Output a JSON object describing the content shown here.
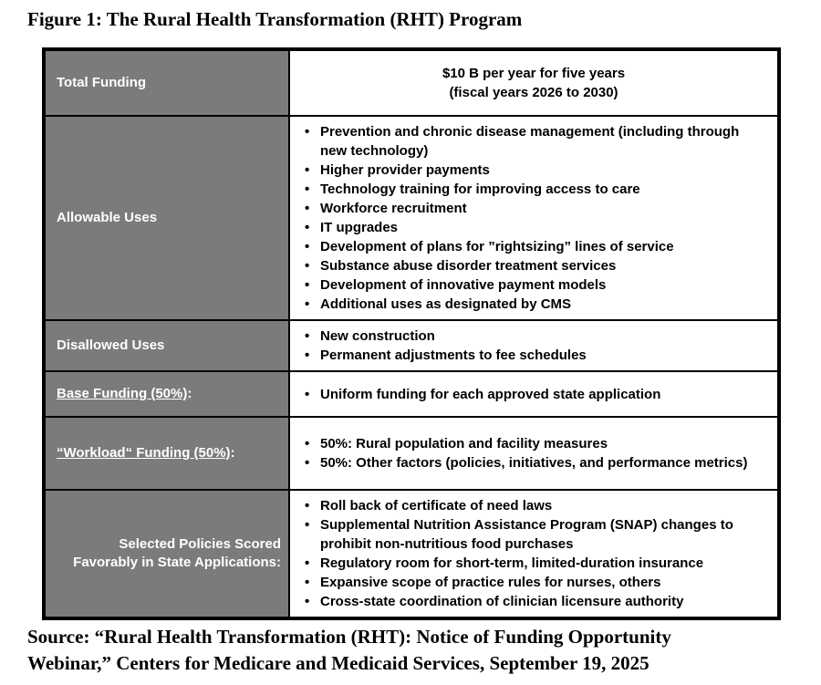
{
  "title": "Figure 1: The Rural Health Transformation (RHT) Program",
  "colors": {
    "label_bg": "#7b7b7b",
    "label_text": "#ffffff",
    "border": "#000000",
    "content_text": "#000000"
  },
  "table": {
    "rows": [
      {
        "label": "Total Funding",
        "label_underline": false,
        "label_align": "left",
        "content_type": "centered_lines",
        "content_lines": [
          "$10 B per year for five years",
          "(fiscal years 2026 to 2030)"
        ]
      },
      {
        "label": "Allowable Uses",
        "label_underline": false,
        "label_align": "left",
        "content_type": "bullets",
        "bullets": [
          "Prevention and chronic disease management (including through new technology)",
          "Higher provider payments",
          "Technology training for improving access to care",
          "Workforce recruitment",
          "IT upgrades",
          "Development of plans for ”rightsizing” lines of service",
          "Substance abuse disorder treatment services",
          "Development of innovative payment models",
          "Additional uses as designated by CMS"
        ]
      },
      {
        "label": "Disallowed Uses",
        "label_underline": false,
        "label_align": "left",
        "content_type": "bullets",
        "bullets": [
          "New construction",
          "Permanent adjustments to fee schedules"
        ]
      },
      {
        "label": "Base Funding (50%)",
        "label_suffix": ":",
        "label_underline": true,
        "label_align": "left",
        "content_type": "bullets",
        "bullets": [
          "Uniform funding for each approved state application"
        ]
      },
      {
        "label": "“Workload“ Funding (50%)",
        "label_suffix": ":",
        "label_underline": true,
        "label_align": "left",
        "content_type": "bullets",
        "bullets": [
          "50%: Rural population and facility measures",
          "50%: Other factors (policies, initiatives, and performance metrics)"
        ]
      },
      {
        "label": "Selected Policies Scored Favorably in State Applications:",
        "label_underline": false,
        "label_align": "right",
        "content_type": "bullets",
        "bullets": [
          "Roll back of certificate of need laws",
          "Supplemental Nutrition Assistance Program (SNAP) changes to prohibit non-nutritious food purchases",
          "Regulatory room for short-term, limited-duration insurance",
          "Expansive scope of practice rules for nurses, others",
          "Cross-state coordination of clinician licensure authority"
        ]
      }
    ]
  },
  "source": {
    "line1": "Source: “Rural Health Transformation (RHT): Notice of Funding Opportunity",
    "line2": "Webinar,” Centers for Medicare and Medicaid Services, September 19, 2025"
  }
}
